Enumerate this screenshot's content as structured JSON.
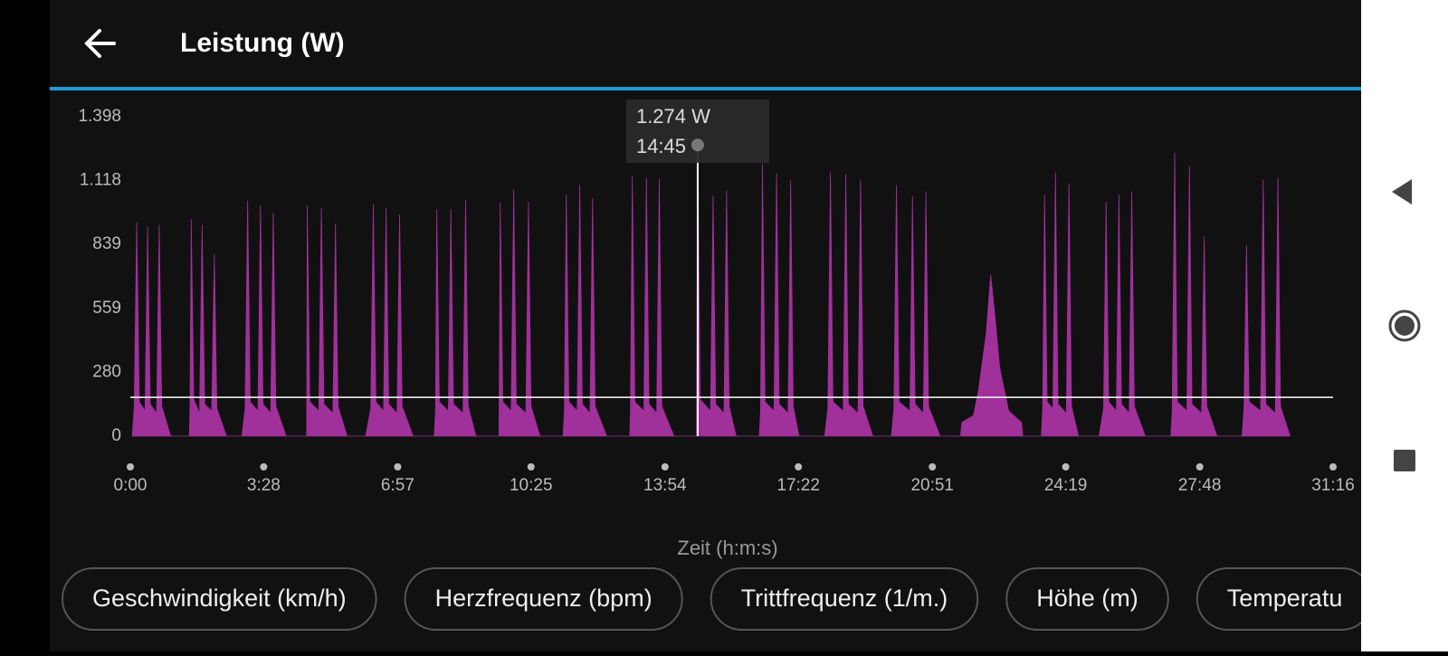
{
  "header": {
    "title": "Leistung (W)"
  },
  "chart_data": {
    "type": "area",
    "color": "#a0309a",
    "xlabel": "Zeit (h:m:s)",
    "xlim": [
      0,
      1876
    ],
    "ylim": [
      0,
      1398
    ],
    "xticks": [
      {
        "value": 0,
        "label": "0:00"
      },
      {
        "value": 208,
        "label": "3:28"
      },
      {
        "value": 417,
        "label": "6:57"
      },
      {
        "value": 625,
        "label": "10:25"
      },
      {
        "value": 834,
        "label": "13:54"
      },
      {
        "value": 1042,
        "label": "17:22"
      },
      {
        "value": 1251,
        "label": "20:51"
      },
      {
        "value": 1459,
        "label": "24:19"
      },
      {
        "value": 1668,
        "label": "27:48"
      },
      {
        "value": 1876,
        "label": "31:16"
      }
    ],
    "yticks": [
      0,
      280,
      559,
      839,
      {
        "value": 1118,
        "label": "1.118"
      },
      {
        "value": 1398,
        "label": "1.398"
      }
    ],
    "reference_line": 170,
    "tooltip": {
      "x": 885,
      "x_label": "14:45",
      "value": 1274,
      "value_label": "1.274 W"
    },
    "x": [
      3,
      6,
      10,
      14,
      23,
      27,
      31,
      41,
      45,
      49,
      63,
      92,
      93,
      95,
      99,
      108,
      112,
      116,
      127,
      131,
      135,
      150,
      174,
      179,
      183,
      187,
      199,
      203,
      207,
      219,
      223,
      227,
      243,
      275,
      276,
      280,
      294,
      298,
      302,
      316,
      320,
      324,
      338,
      367,
      375,
      379,
      383,
      395,
      399,
      403,
      416,
      420,
      424,
      441,
      474,
      476,
      478,
      482,
      496,
      500,
      504,
      519,
      523,
      527,
      539,
      575,
      577,
      581,
      594,
      598,
      602,
      617,
      621,
      625,
      639,
      675,
      677,
      680,
      684,
      697,
      701,
      705,
      717,
      721,
      725,
      743,
      779,
      780,
      783,
      787,
      801,
      805,
      809,
      821,
      825,
      829,
      848,
      883,
      885,
      889,
      905,
      909,
      913,
      926,
      930,
      934,
      945,
      981,
      983,
      986,
      990,
      1004,
      1008,
      1012,
      1026,
      1030,
      1034,
      1043,
      1083,
      1088,
      1092,
      1096,
      1112,
      1116,
      1120,
      1135,
      1139,
      1143,
      1158,
      1187,
      1191,
      1195,
      1199,
      1216,
      1220,
      1224,
      1237,
      1241,
      1245,
      1263,
      1295,
      1297,
      1315,
      1323,
      1335,
      1342,
      1349,
      1356,
      1370,
      1390,
      1392,
      1421,
      1423,
      1426,
      1430,
      1439,
      1443,
      1447,
      1460,
      1464,
      1468,
      1479,
      1511,
      1518,
      1522,
      1526,
      1538,
      1542,
      1546,
      1558,
      1562,
      1566,
      1583,
      1623,
      1625,
      1629,
      1633,
      1648,
      1652,
      1656,
      1671,
      1675,
      1679,
      1695,
      1734,
      1737,
      1741,
      1745,
      1763,
      1767,
      1771,
      1786,
      1790,
      1794,
      1809
    ],
    "values": [
      0,
      120,
      937,
      150,
      110,
      917,
      140,
      100,
      925,
      130,
      0,
      0,
      110,
      949,
      160,
      100,
      925,
      140,
      110,
      796,
      120,
      0,
      0,
      120,
      1030,
      150,
      110,
      1010,
      140,
      100,
      978,
      130,
      0,
      0,
      1010,
      150,
      110,
      998,
      140,
      100,
      929,
      130,
      0,
      0,
      120,
      1014,
      150,
      110,
      998,
      140,
      100,
      970,
      130,
      0,
      0,
      110,
      994,
      150,
      110,
      994,
      140,
      100,
      1034,
      130,
      0,
      0,
      1022,
      150,
      110,
      1079,
      140,
      100,
      1026,
      130,
      0,
      0,
      110,
      1058,
      150,
      110,
      1099,
      140,
      100,
      1042,
      130,
      0,
      0,
      110,
      1139,
      150,
      110,
      1131,
      140,
      100,
      1127,
      130,
      0,
      0,
      1274,
      160,
      110,
      1054,
      140,
      100,
      1075,
      130,
      0,
      0,
      110,
      1192,
      150,
      110,
      1151,
      140,
      100,
      1119,
      130,
      0,
      0,
      120,
      1155,
      150,
      110,
      1147,
      140,
      100,
      1123,
      130,
      0,
      0,
      120,
      1099,
      150,
      110,
      1050,
      140,
      100,
      1071,
      130,
      0,
      0,
      60,
      90,
      200,
      450,
      707,
      513,
      300,
      110,
      60,
      0,
      0,
      120,
      1058,
      150,
      120,
      1155,
      140,
      100,
      1107,
      130,
      0,
      0,
      120,
      1026,
      150,
      110,
      1058,
      140,
      100,
      1071,
      130,
      0,
      0,
      110,
      1240,
      150,
      110,
      1180,
      140,
      100,
      873,
      130,
      0,
      0,
      120,
      836,
      150,
      110,
      1123,
      140,
      100,
      1131,
      130,
      0
    ]
  },
  "chips": [
    "Geschwindigkeit (km/h)",
    "Herzfrequenz (bpm)",
    "Trittfrequenz (1/m.)",
    "Höhe (m)",
    "Temperatu"
  ]
}
